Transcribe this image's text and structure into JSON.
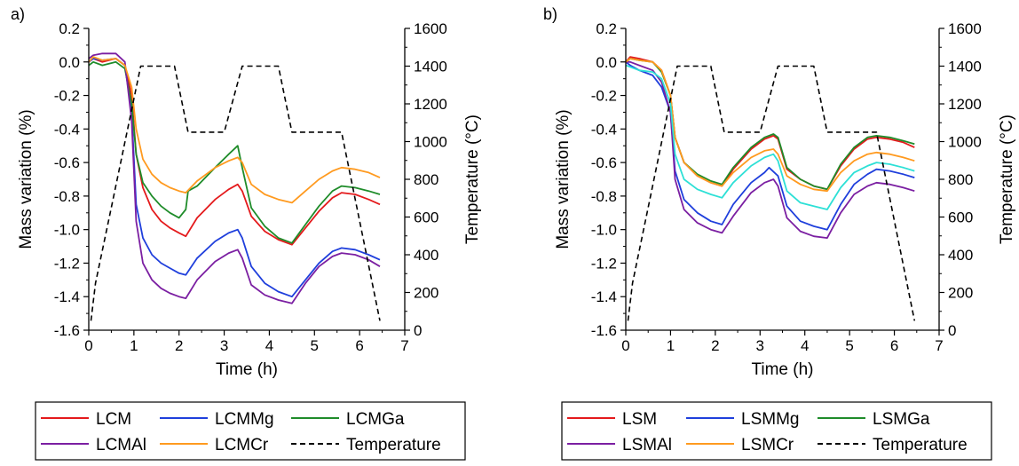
{
  "chart_data": [
    {
      "type": "line",
      "panel_label": "a)",
      "xlabel": "Time (h)",
      "ylabel": "Mass variation (%)",
      "y2label": "Temperature (°C)",
      "xlim": [
        0,
        7
      ],
      "ylim": [
        -1.6,
        0.2
      ],
      "y2lim": [
        0,
        1600
      ],
      "x_ticks": [
        "0",
        "1",
        "2",
        "3",
        "4",
        "5",
        "6",
        "7"
      ],
      "y_ticks": [
        "0.2",
        "0.0",
        "-0.2",
        "-0.4",
        "-0.6",
        "-0.8",
        "-1.0",
        "-1.2",
        "-1.4",
        "-1.6"
      ],
      "y2_ticks": [
        "1600",
        "1400",
        "1200",
        "1000",
        "800",
        "600",
        "400",
        "200",
        "0"
      ],
      "legend_position": "bottom",
      "series": [
        {
          "name": "LCM",
          "color": "#e41a1c",
          "axis": "left",
          "x": [
            0,
            0.1,
            0.3,
            0.6,
            0.8,
            0.95,
            1.05,
            1.2,
            1.4,
            1.6,
            1.8,
            2.0,
            2.15,
            2.4,
            2.8,
            3.1,
            3.3,
            3.4,
            3.6,
            3.9,
            4.2,
            4.5,
            4.8,
            5.1,
            5.4,
            5.6,
            5.9,
            6.2,
            6.45
          ],
          "y": [
            0.0,
            0.02,
            0.0,
            0.02,
            -0.02,
            -0.2,
            -0.55,
            -0.75,
            -0.88,
            -0.95,
            -0.99,
            -1.02,
            -1.04,
            -0.93,
            -0.82,
            -0.76,
            -0.73,
            -0.77,
            -0.92,
            -1.01,
            -1.06,
            -1.09,
            -0.99,
            -0.89,
            -0.81,
            -0.78,
            -0.79,
            -0.82,
            -0.85
          ]
        },
        {
          "name": "LCMMg",
          "color": "#1f3fdc",
          "axis": "left",
          "x": [
            0,
            0.1,
            0.3,
            0.6,
            0.8,
            0.95,
            1.05,
            1.2,
            1.4,
            1.6,
            1.8,
            2.0,
            2.15,
            2.4,
            2.8,
            3.1,
            3.3,
            3.4,
            3.6,
            3.9,
            4.2,
            4.5,
            4.8,
            5.1,
            5.4,
            5.6,
            5.9,
            6.2,
            6.45
          ],
          "y": [
            0.0,
            0.02,
            0.01,
            0.02,
            -0.02,
            -0.3,
            -0.85,
            -1.05,
            -1.15,
            -1.2,
            -1.23,
            -1.26,
            -1.27,
            -1.17,
            -1.07,
            -1.02,
            -1.0,
            -1.05,
            -1.22,
            -1.32,
            -1.37,
            -1.4,
            -1.3,
            -1.2,
            -1.13,
            -1.11,
            -1.12,
            -1.15,
            -1.18
          ]
        },
        {
          "name": "LCMGa",
          "color": "#1f8c2a",
          "axis": "left",
          "x": [
            0,
            0.1,
            0.3,
            0.6,
            0.8,
            0.95,
            1.05,
            1.2,
            1.4,
            1.6,
            1.8,
            2.0,
            2.15,
            2.2,
            2.4,
            2.8,
            3.1,
            3.3,
            3.4,
            3.6,
            3.9,
            4.2,
            4.5,
            4.8,
            5.1,
            5.4,
            5.6,
            5.9,
            6.2,
            6.45
          ],
          "y": [
            -0.02,
            0.0,
            -0.02,
            0.0,
            -0.04,
            -0.25,
            -0.55,
            -0.72,
            -0.8,
            -0.86,
            -0.9,
            -0.93,
            -0.88,
            -0.77,
            -0.74,
            -0.63,
            -0.55,
            -0.5,
            -0.63,
            -0.87,
            -0.98,
            -1.05,
            -1.08,
            -0.97,
            -0.86,
            -0.77,
            -0.74,
            -0.75,
            -0.77,
            -0.79
          ]
        },
        {
          "name": "LCMAl",
          "color": "#7b1fa2",
          "axis": "left",
          "x": [
            0,
            0.1,
            0.3,
            0.6,
            0.8,
            0.95,
            1.05,
            1.2,
            1.4,
            1.6,
            1.8,
            2.0,
            2.15,
            2.4,
            2.8,
            3.1,
            3.3,
            3.4,
            3.6,
            3.9,
            4.2,
            4.5,
            4.8,
            5.1,
            5.4,
            5.6,
            5.9,
            6.2,
            6.45
          ],
          "y": [
            0.02,
            0.04,
            0.05,
            0.05,
            0.0,
            -0.35,
            -0.95,
            -1.2,
            -1.3,
            -1.35,
            -1.38,
            -1.4,
            -1.41,
            -1.3,
            -1.19,
            -1.14,
            -1.12,
            -1.17,
            -1.33,
            -1.39,
            -1.42,
            -1.44,
            -1.32,
            -1.22,
            -1.16,
            -1.14,
            -1.15,
            -1.18,
            -1.22
          ]
        },
        {
          "name": "LCMCr",
          "color": "#ff9a1f",
          "axis": "left",
          "x": [
            0,
            0.1,
            0.3,
            0.6,
            0.8,
            0.95,
            1.05,
            1.2,
            1.4,
            1.6,
            1.8,
            2.0,
            2.15,
            2.4,
            2.8,
            3.1,
            3.3,
            3.4,
            3.6,
            3.9,
            4.2,
            4.5,
            4.8,
            5.1,
            5.4,
            5.6,
            5.9,
            6.2,
            6.45
          ],
          "y": [
            0.0,
            0.03,
            0.01,
            0.02,
            -0.02,
            -0.15,
            -0.4,
            -0.58,
            -0.67,
            -0.72,
            -0.75,
            -0.77,
            -0.78,
            -0.71,
            -0.63,
            -0.59,
            -0.57,
            -0.6,
            -0.73,
            -0.79,
            -0.82,
            -0.84,
            -0.77,
            -0.7,
            -0.65,
            -0.63,
            -0.64,
            -0.66,
            -0.69
          ]
        },
        {
          "name": "Temperature",
          "color": "#000000",
          "axis": "right",
          "dashed": true,
          "x": [
            0.05,
            0.15,
            0.5,
            1.15,
            1.9,
            2.2,
            3.0,
            3.4,
            4.2,
            4.5,
            5.6,
            6.45
          ],
          "y": [
            50,
            250,
            650,
            1400,
            1400,
            1050,
            1050,
            1400,
            1400,
            1050,
            1050,
            50
          ]
        }
      ]
    },
    {
      "type": "line",
      "panel_label": "b)",
      "xlabel": "Time (h)",
      "ylabel": "Mass variation (%)",
      "y2label": "Temperature (°C)",
      "xlim": [
        0,
        7
      ],
      "ylim": [
        -1.6,
        0.2
      ],
      "y2lim": [
        0,
        1600
      ],
      "x_ticks": [
        "0",
        "1",
        "2",
        "3",
        "4",
        "5",
        "6",
        "7"
      ],
      "y_ticks": [
        "0.2",
        "0.0",
        "-0.2",
        "-0.4",
        "-0.6",
        "-0.8",
        "-1.0",
        "-1.2",
        "-1.4",
        "-1.6"
      ],
      "y2_ticks": [
        "1600",
        "1400",
        "1200",
        "1000",
        "800",
        "600",
        "400",
        "200",
        "0"
      ],
      "legend_position": "bottom",
      "series": [
        {
          "name": "LSM",
          "color": "#e41a1c",
          "axis": "left",
          "x": [
            0,
            0.1,
            0.3,
            0.6,
            0.8,
            1.0,
            1.1,
            1.3,
            1.6,
            1.9,
            2.15,
            2.4,
            2.8,
            3.1,
            3.3,
            3.4,
            3.6,
            3.9,
            4.2,
            4.5,
            4.8,
            5.1,
            5.4,
            5.6,
            5.9,
            6.2,
            6.45
          ],
          "y": [
            0.0,
            0.03,
            0.02,
            0.0,
            -0.05,
            -0.2,
            -0.45,
            -0.6,
            -0.68,
            -0.72,
            -0.74,
            -0.64,
            -0.52,
            -0.46,
            -0.44,
            -0.46,
            -0.64,
            -0.7,
            -0.74,
            -0.76,
            -0.62,
            -0.52,
            -0.46,
            -0.45,
            -0.46,
            -0.48,
            -0.51
          ]
        },
        {
          "name": "LSMMg",
          "color": "#1f3fdc",
          "axis": "left",
          "x": [
            0,
            0.1,
            0.3,
            0.6,
            0.8,
            1.0,
            1.1,
            1.3,
            1.6,
            1.9,
            2.15,
            2.4,
            2.8,
            3.1,
            3.2,
            3.4,
            3.6,
            3.9,
            4.2,
            4.5,
            4.8,
            5.1,
            5.4,
            5.6,
            5.9,
            6.2,
            6.45
          ],
          "y": [
            0.0,
            -0.02,
            -0.05,
            -0.08,
            -0.15,
            -0.3,
            -0.65,
            -0.82,
            -0.9,
            -0.95,
            -0.97,
            -0.85,
            -0.72,
            -0.66,
            -0.63,
            -0.68,
            -0.86,
            -0.95,
            -0.98,
            -1.0,
            -0.85,
            -0.73,
            -0.67,
            -0.64,
            -0.65,
            -0.67,
            -0.69
          ]
        },
        {
          "name": "LSMGa",
          "color": "#1f8c2a",
          "axis": "left",
          "x": [
            0,
            0.1,
            0.3,
            0.6,
            0.8,
            1.0,
            1.1,
            1.3,
            1.6,
            1.9,
            2.15,
            2.4,
            2.8,
            3.1,
            3.3,
            3.4,
            3.6,
            3.9,
            4.2,
            4.5,
            4.8,
            5.1,
            5.4,
            5.6,
            5.9,
            6.2,
            6.45
          ],
          "y": [
            0.0,
            0.02,
            0.01,
            0.0,
            -0.06,
            -0.2,
            -0.45,
            -0.6,
            -0.67,
            -0.71,
            -0.73,
            -0.63,
            -0.51,
            -0.45,
            -0.43,
            -0.45,
            -0.63,
            -0.7,
            -0.74,
            -0.76,
            -0.61,
            -0.51,
            -0.45,
            -0.44,
            -0.45,
            -0.47,
            -0.49
          ]
        },
        {
          "name": "LSMAl",
          "color": "#7b1fa2",
          "axis": "left",
          "x": [
            0,
            0.1,
            0.3,
            0.6,
            0.8,
            1.0,
            1.1,
            1.3,
            1.6,
            1.9,
            2.15,
            2.4,
            2.8,
            3.1,
            3.3,
            3.4,
            3.6,
            3.9,
            4.2,
            4.5,
            4.8,
            5.1,
            5.4,
            5.6,
            5.9,
            6.2,
            6.45
          ],
          "y": [
            0.0,
            0.0,
            -0.02,
            -0.05,
            -0.12,
            -0.3,
            -0.7,
            -0.88,
            -0.96,
            -1.0,
            -1.02,
            -0.92,
            -0.78,
            -0.72,
            -0.7,
            -0.74,
            -0.93,
            -1.01,
            -1.04,
            -1.05,
            -0.9,
            -0.79,
            -0.74,
            -0.72,
            -0.73,
            -0.75,
            -0.77
          ]
        },
        {
          "name": "LSMCr",
          "color": "#ff9a1f",
          "axis": "left",
          "x": [
            0,
            0.1,
            0.3,
            0.6,
            0.8,
            1.0,
            1.1,
            1.3,
            1.6,
            1.9,
            2.15,
            2.4,
            2.8,
            3.1,
            3.3,
            3.4,
            3.6,
            3.9,
            4.2,
            4.5,
            4.8,
            5.1,
            5.4,
            5.6,
            5.9,
            6.2,
            6.45
          ],
          "y": [
            0.0,
            0.02,
            0.01,
            0.0,
            -0.05,
            -0.2,
            -0.45,
            -0.6,
            -0.68,
            -0.72,
            -0.74,
            -0.66,
            -0.57,
            -0.53,
            -0.52,
            -0.55,
            -0.68,
            -0.73,
            -0.76,
            -0.77,
            -0.66,
            -0.59,
            -0.55,
            -0.54,
            -0.55,
            -0.57,
            -0.59
          ]
        },
        {
          "name": "",
          "color": "#2de0d6",
          "axis": "left",
          "x": [
            0,
            0.1,
            0.3,
            0.6,
            0.8,
            1.0,
            1.1,
            1.3,
            1.6,
            1.9,
            2.15,
            2.4,
            2.8,
            3.1,
            3.3,
            3.4,
            3.6,
            3.9,
            4.2,
            4.5,
            4.8,
            5.1,
            5.4,
            5.6,
            5.9,
            6.2,
            6.45
          ],
          "y": [
            -0.02,
            -0.03,
            -0.05,
            -0.06,
            -0.1,
            -0.25,
            -0.55,
            -0.7,
            -0.76,
            -0.79,
            -0.81,
            -0.72,
            -0.62,
            -0.57,
            -0.55,
            -0.59,
            -0.77,
            -0.84,
            -0.86,
            -0.88,
            -0.75,
            -0.66,
            -0.62,
            -0.6,
            -0.61,
            -0.63,
            -0.65
          ]
        },
        {
          "name": "Temperature",
          "color": "#000000",
          "axis": "right",
          "dashed": true,
          "x": [
            0.05,
            0.15,
            0.5,
            1.15,
            1.9,
            2.2,
            3.0,
            3.4,
            4.2,
            4.5,
            5.6,
            6.45
          ],
          "y": [
            50,
            250,
            650,
            1400,
            1400,
            1050,
            1050,
            1400,
            1400,
            1050,
            1050,
            50
          ]
        }
      ]
    }
  ],
  "legends": [
    {
      "rows": [
        [
          {
            "name": "LCM",
            "color": "#e41a1c",
            "dashed": false
          },
          {
            "name": "LCMMg",
            "color": "#1f3fdc",
            "dashed": false
          },
          {
            "name": "LCMGa",
            "color": "#1f8c2a",
            "dashed": false
          }
        ],
        [
          {
            "name": "LCMAl",
            "color": "#7b1fa2",
            "dashed": false
          },
          {
            "name": "LCMCr",
            "color": "#ff9a1f",
            "dashed": false
          },
          {
            "name": "Temperature",
            "color": "#000000",
            "dashed": true
          }
        ]
      ]
    },
    {
      "rows": [
        [
          {
            "name": "LSM",
            "color": "#e41a1c",
            "dashed": false
          },
          {
            "name": "LSMMg",
            "color": "#1f3fdc",
            "dashed": false
          },
          {
            "name": "LSMGa",
            "color": "#1f8c2a",
            "dashed": false
          }
        ],
        [
          {
            "name": "LSMAl",
            "color": "#7b1fa2",
            "dashed": false
          },
          {
            "name": "LSMCr",
            "color": "#ff9a1f",
            "dashed": false
          },
          {
            "name": "Temperature",
            "color": "#000000",
            "dashed": true
          }
        ]
      ]
    }
  ]
}
